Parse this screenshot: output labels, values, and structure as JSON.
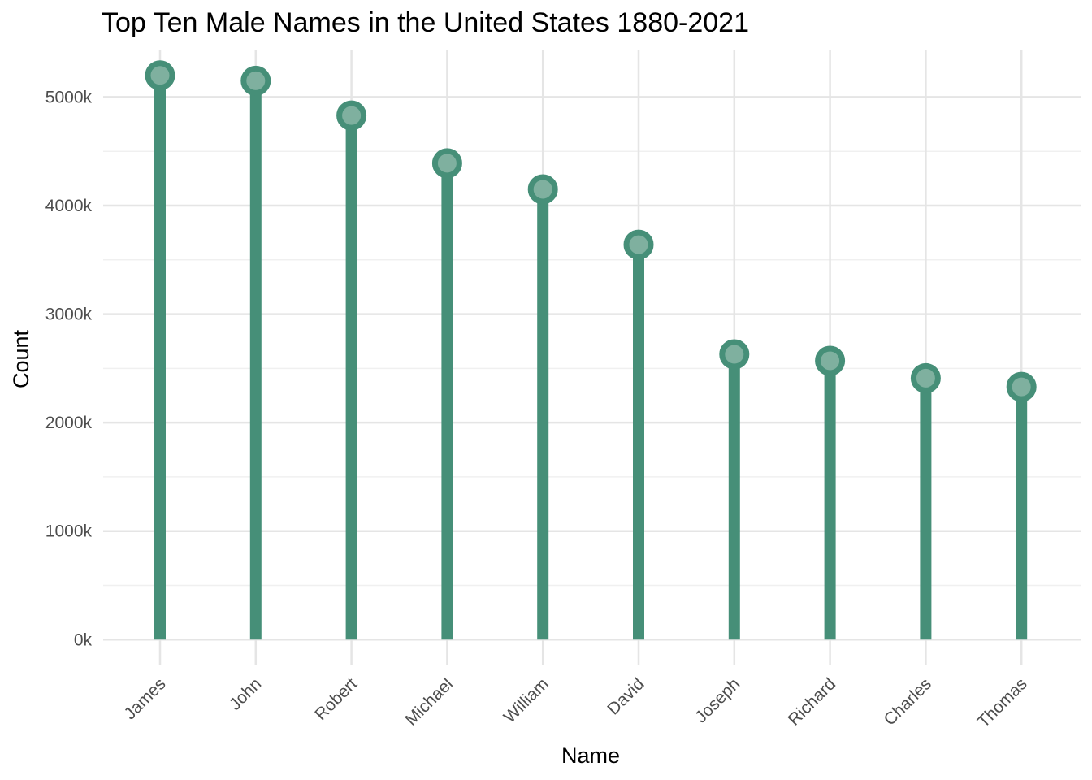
{
  "chart_data": {
    "type": "lollipop",
    "title": "Top Ten Male Names in the United States 1880-2021",
    "xlabel": "Name",
    "ylabel": "Count",
    "categories": [
      "James",
      "John",
      "Robert",
      "Michael",
      "William",
      "David",
      "Joseph",
      "Richard",
      "Charles",
      "Thomas"
    ],
    "values": [
      5200000,
      5150000,
      4830000,
      4390000,
      4150000,
      3640000,
      2630000,
      2570000,
      2410000,
      2330000
    ],
    "ylim": [
      -230000,
      5430000
    ],
    "y_ticks": [
      0,
      1000000,
      2000000,
      3000000,
      4000000,
      5000000
    ],
    "y_tick_labels": [
      "0k",
      "1000k",
      "2000k",
      "3000k",
      "4000k",
      "5000k"
    ],
    "grid": true,
    "legend": "none",
    "colors": {
      "stem": "#468f78",
      "point_fill": "#7fb09f",
      "point_stroke": "#468f78",
      "grid_major": "#e5e5e5",
      "grid_minor": "#f0f0f0"
    }
  }
}
